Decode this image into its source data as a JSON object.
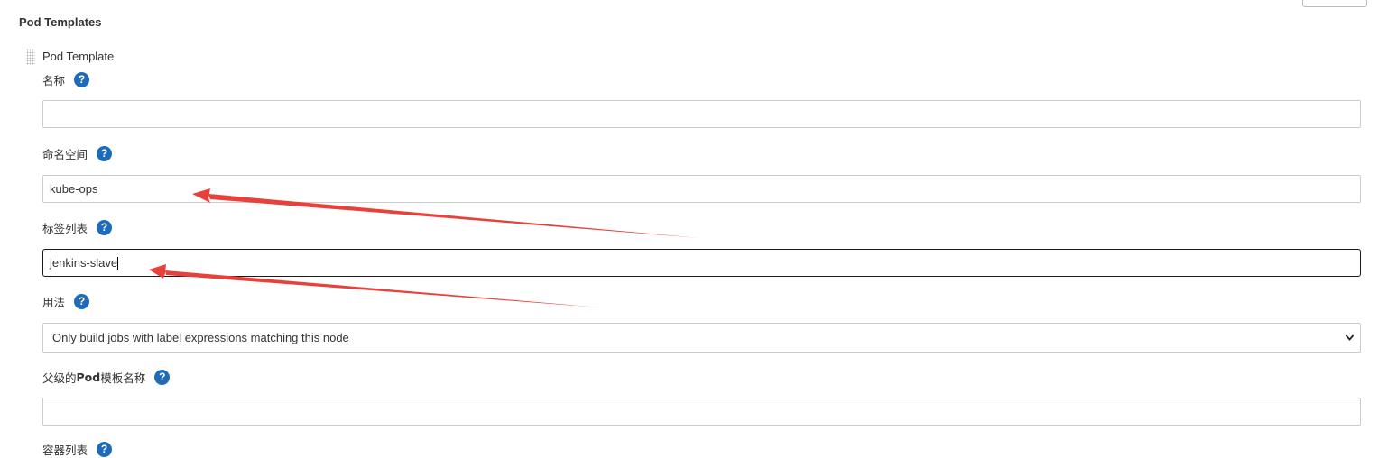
{
  "section": {
    "title": "Pod Templates"
  },
  "template": {
    "title": "Pod Template"
  },
  "fields": {
    "name": {
      "label": "名称",
      "value": ""
    },
    "namespace": {
      "label": "命名空间",
      "value": "kube-ops"
    },
    "labels": {
      "label": "标签列表",
      "value": "jenkins-slave"
    },
    "usage": {
      "label": "用法",
      "selected": "Only build jobs with label expressions matching this node"
    },
    "parent": {
      "label_pre": "父级的 ",
      "label_bold": "Pod",
      "label_post": " 模板名称",
      "value": ""
    },
    "next": {
      "label": "容器列表"
    }
  },
  "help_icon": "question-icon",
  "colors": {
    "help": "#1e6bb8",
    "annotation_arrow": "#e8403a",
    "focus_border": "#1a1a1a"
  }
}
